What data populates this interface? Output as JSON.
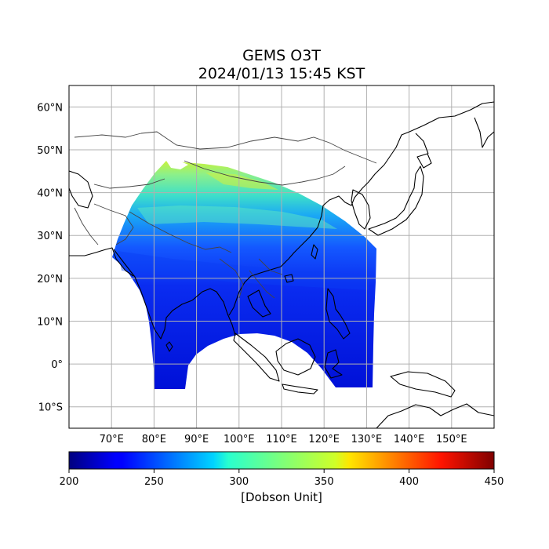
{
  "title": "GEMS O3T",
  "subtitle": "2024/01/13 15:45 KST",
  "map": {
    "lon_range": [
      60,
      160
    ],
    "lat_range": [
      -15,
      65
    ],
    "lon_ticks": [
      {
        "value": 70,
        "label": "70°E"
      },
      {
        "value": 80,
        "label": "80°E"
      },
      {
        "value": 90,
        "label": "90°E"
      },
      {
        "value": 100,
        "label": "100°E"
      },
      {
        "value": 110,
        "label": "110°E"
      },
      {
        "value": 120,
        "label": "120°E"
      },
      {
        "value": 130,
        "label": "130°E"
      },
      {
        "value": 140,
        "label": "140°E"
      },
      {
        "value": 150,
        "label": "150°E"
      }
    ],
    "lat_ticks": [
      {
        "value": 60,
        "label": "60°N"
      },
      {
        "value": 50,
        "label": "50°N"
      },
      {
        "value": 40,
        "label": "40°N"
      },
      {
        "value": 30,
        "label": "30°N"
      },
      {
        "value": 20,
        "label": "20°N"
      },
      {
        "value": 10,
        "label": "10°N"
      },
      {
        "value": 0,
        "label": "0°"
      },
      {
        "value": -10,
        "label": "10°S"
      }
    ],
    "grid": true,
    "gridline_color": "#b0b0b0"
  },
  "colorbar": {
    "label": "[Dobson Unit]",
    "min": 200,
    "max": 450,
    "ticks": [
      {
        "value": 200,
        "label": "200"
      },
      {
        "value": 250,
        "label": "250"
      },
      {
        "value": 300,
        "label": "300"
      },
      {
        "value": 350,
        "label": "350"
      },
      {
        "value": 400,
        "label": "400"
      },
      {
        "value": 450,
        "label": "450"
      }
    ],
    "colormap": "jet"
  }
}
